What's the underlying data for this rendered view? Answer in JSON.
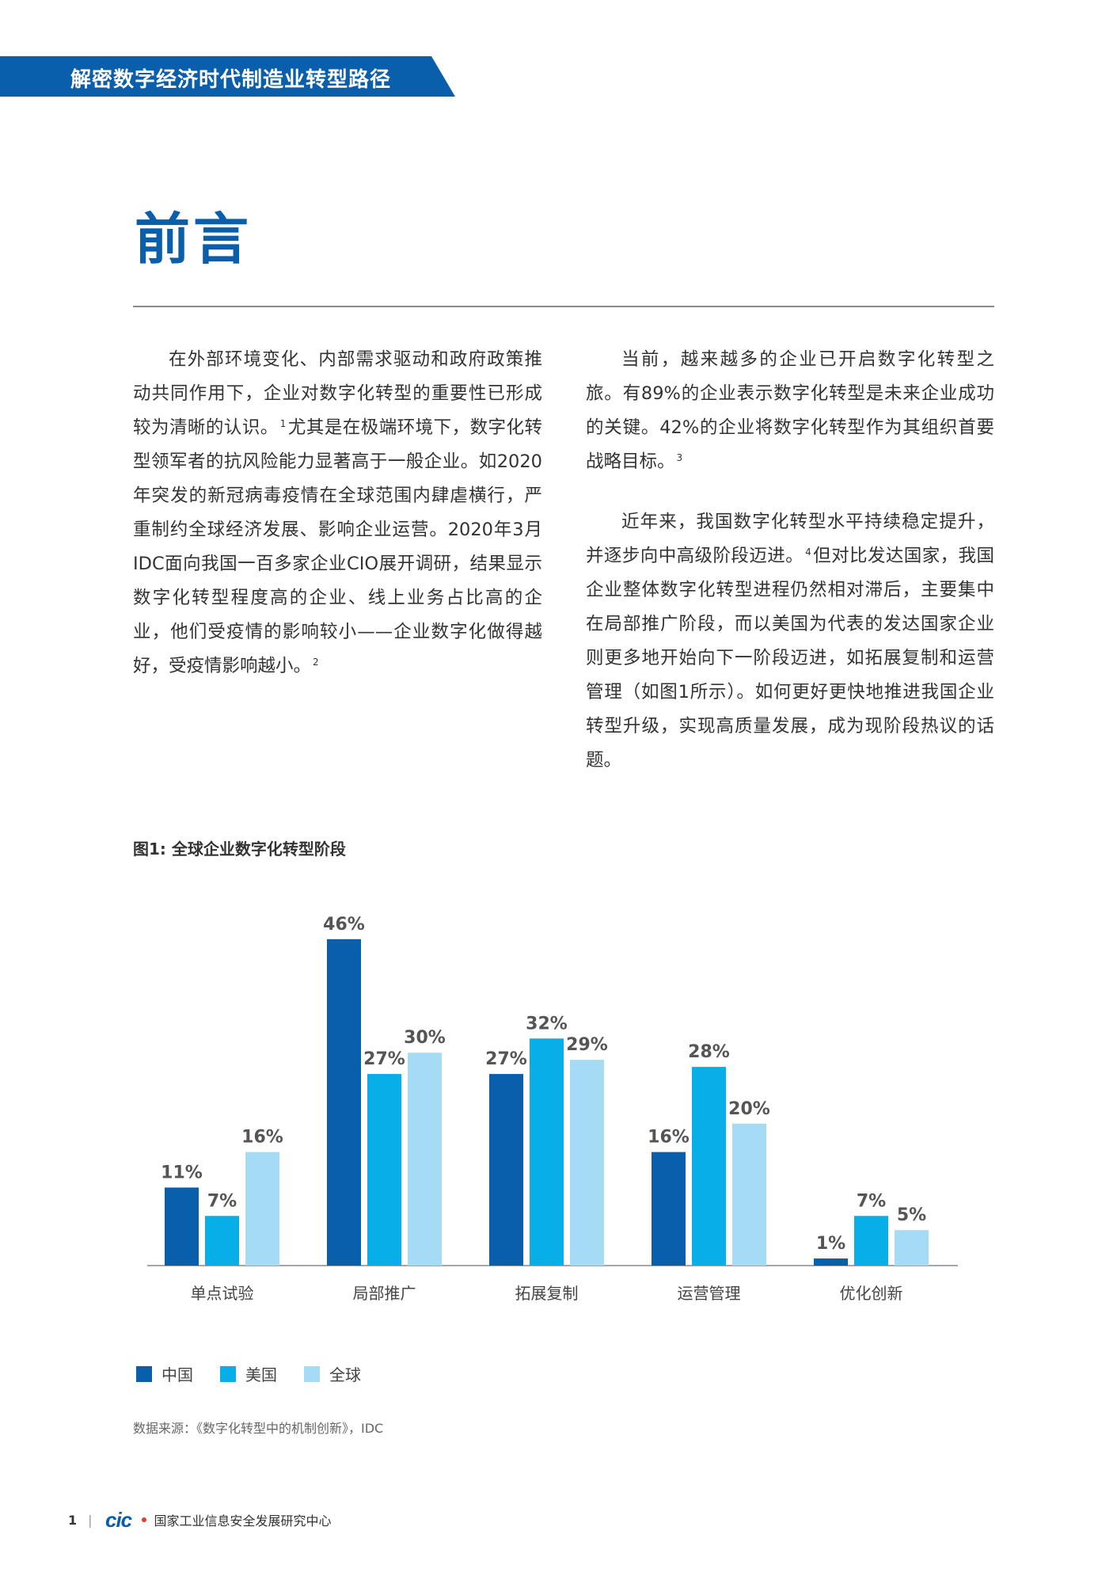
{
  "header": {
    "title": "解密数字经济时代制造业转型路径"
  },
  "section": {
    "title": "前言"
  },
  "body": {
    "left": {
      "p1_a": "在外部环境变化、内部需求驱动和政府政策推动共同作用下，企业对数字化转型的重要性已形成较为清晰的认识。",
      "fn1": "1",
      "p1_b": "尤其是在极端环境下，数字化转型领军者的抗风险能力显著高于一般企业。如2020年突发的新冠病毒疫情在全球范围内肆虐横行，严重制约全球经济发展、影响企业运营。2020年3月IDC面向我国一百多家企业CIO展开调研，结果显示数字化转型程度高的企业、线上业务占比高的企业，他们受疫情的影响较小——企业数字化做得越好，受疫情影响越小。",
      "fn2": "2"
    },
    "right": {
      "p1": "当前，越来越多的企业已开启数字化转型之旅。有89%的企业表示数字化转型是未来企业成功的关键。42%的企业将数字化转型作为其组织首要战略目标。",
      "fn3": "3",
      "p2_a": "近年来，我国数字化转型水平持续稳定提升，并逐步向中高级阶段迈进。",
      "fn4": "4",
      "p2_b": "但对比发达国家，我国企业整体数字化转型进程仍然相对滞后，主要集中在局部推广阶段，而以美国为代表的发达国家企业则更多地开始向下一阶段迈进，如拓展复制和运营管理（如图1所示）。如何更好更快地推进我国企业转型升级，实现高质量发展，成为现阶段热议的话题。"
    }
  },
  "figure": {
    "title": "图1: 全球企业数字化转型阶段",
    "source": "数据来源：《数字化转型中的机制创新》，IDC"
  },
  "chart_data": {
    "type": "bar",
    "title": "图1: 全球企业数字化转型阶段",
    "categories": [
      "单点试验",
      "局部推广",
      "拓展复制",
      "运营管理",
      "优化创新"
    ],
    "series": [
      {
        "name": "中国",
        "values": [
          11,
          46,
          27,
          16,
          1
        ],
        "color": "#0a5fad"
      },
      {
        "name": "美国",
        "values": [
          7,
          27,
          32,
          28,
          7
        ],
        "color": "#08aee8"
      },
      {
        "name": "全球",
        "values": [
          16,
          30,
          29,
          20,
          5
        ],
        "color": "#a6dbf5"
      }
    ],
    "value_suffix": "%",
    "ylim": [
      0,
      50
    ],
    "grid": false,
    "legend": "bottom-left"
  },
  "footer": {
    "page_number": "1",
    "separator": "|",
    "logo_text": "CIC",
    "org": "国家工业信息安全发展研究中心"
  }
}
